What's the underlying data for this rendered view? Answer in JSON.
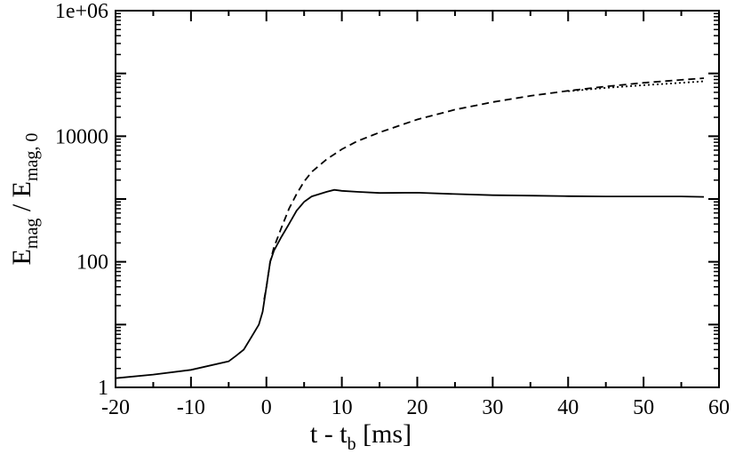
{
  "chart_data": {
    "type": "line",
    "xlabel": "t - t",
    "xlabel_sub": "b",
    "xlabel_unit": " [ms]",
    "ylabel_main": "E",
    "ylabel_sub1": "mag",
    "ylabel_sep": " / E",
    "ylabel_sub2": "mag, 0",
    "xlim": [
      -20,
      60
    ],
    "ylim": [
      1,
      1000000
    ],
    "yscale": "log",
    "grid": false,
    "legend": "none",
    "x_ticks": [
      -20,
      -10,
      0,
      10,
      20,
      30,
      40,
      50,
      60
    ],
    "x_tick_labels": [
      "-20",
      "-10",
      "0",
      "10",
      "20",
      "30",
      "40",
      "50",
      "60"
    ],
    "y_ticks": [
      1,
      100,
      10000,
      1000000
    ],
    "y_tick_labels": [
      "1",
      "100",
      "10000",
      "1e+06"
    ],
    "series": [
      {
        "style": "solid",
        "color": "#000000",
        "x": [
          -20,
          -15,
          -10,
          -5,
          -4,
          -3,
          -2,
          -1,
          -0.5,
          0,
          0.5,
          1,
          2,
          3,
          4,
          5,
          6,
          8,
          9,
          10,
          12,
          15,
          20,
          25,
          30,
          35,
          40,
          45,
          50,
          55,
          58
        ],
        "y": [
          1.4,
          1.6,
          1.9,
          2.6,
          3.2,
          4.0,
          6.3,
          10,
          16,
          40,
          100,
          150,
          250,
          400,
          650,
          900,
          1100,
          1300,
          1400,
          1350,
          1300,
          1250,
          1260,
          1200,
          1150,
          1130,
          1110,
          1100,
          1100,
          1100,
          1080
        ]
      },
      {
        "style": "dashed",
        "color": "#000000",
        "x": [
          -0.3,
          0,
          0.5,
          1,
          2,
          3,
          4,
          5,
          6,
          8,
          10,
          12,
          15,
          20,
          25,
          30,
          35,
          40,
          45,
          50,
          55,
          58
        ],
        "y": [
          25,
          40,
          100,
          170,
          350,
          700,
          1200,
          1900,
          2700,
          4300,
          6200,
          8300,
          11500,
          18500,
          26500,
          35000,
          44000,
          53000,
          62000,
          71000,
          79000,
          84000
        ]
      },
      {
        "style": "dotted",
        "color": "#000000",
        "x": [
          40,
          45,
          50,
          55,
          58
        ],
        "y": [
          52000,
          59000,
          65000,
          71000,
          75000
        ]
      }
    ]
  }
}
